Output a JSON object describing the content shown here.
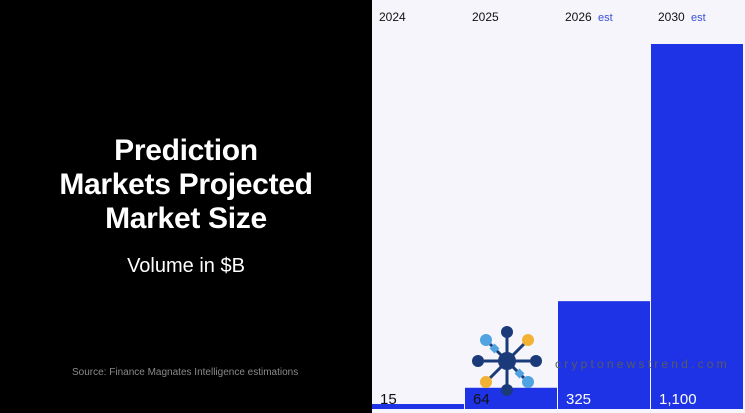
{
  "header": {
    "title_lines": [
      "Prediction",
      "Markets Projected",
      "Market Size"
    ],
    "subtitle": "Volume in $B",
    "source": "Source: Finance Magnates Intelligence estimations"
  },
  "watermark": "cryptonewstrend.com",
  "colors": {
    "bar": "#1e33e6",
    "chart_bg": "#f5f5fb",
    "left_bg": "#000000",
    "label_dark": "#111111",
    "label_light": "#ffffff",
    "est": "#3a4fd8"
  },
  "chart_data": {
    "type": "bar",
    "categories": [
      "2024",
      "2025",
      "2026",
      "2030"
    ],
    "category_suffix": [
      "",
      "",
      "est",
      "est"
    ],
    "values": [
      15,
      64,
      325,
      1100
    ],
    "value_labels": [
      "15",
      "64",
      "325",
      "1,100"
    ],
    "title": "Prediction Markets Projected Market Size",
    "subtitle": "Volume in $B",
    "xlabel": "",
    "ylabel": "",
    "grid": false,
    "legend": "none"
  }
}
